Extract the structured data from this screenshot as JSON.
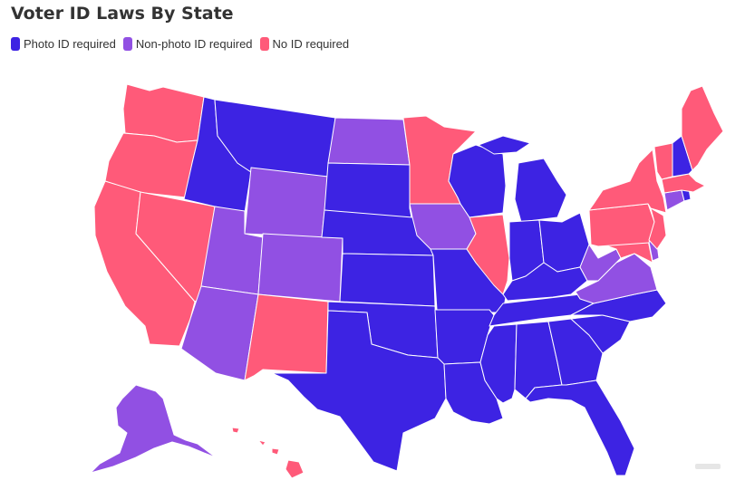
{
  "title": "Voter ID Laws By State",
  "legend": [
    {
      "label": "Photo ID required",
      "color": "#3d23e3"
    },
    {
      "label": "Non-photo ID required",
      "color": "#9150e3"
    },
    {
      "label": "No ID required",
      "color": "#ff5a79"
    }
  ],
  "colors": {
    "photo": "#3d23e3",
    "nonphoto": "#9150e3",
    "none": "#ff5a79"
  },
  "states": [
    {
      "name": "Washington",
      "category": "none"
    },
    {
      "name": "Oregon",
      "category": "none"
    },
    {
      "name": "California",
      "category": "none"
    },
    {
      "name": "Nevada",
      "category": "none"
    },
    {
      "name": "Idaho",
      "category": "photo"
    },
    {
      "name": "Montana",
      "category": "photo"
    },
    {
      "name": "Wyoming",
      "category": "nonphoto"
    },
    {
      "name": "Utah",
      "category": "nonphoto"
    },
    {
      "name": "Arizona",
      "category": "nonphoto"
    },
    {
      "name": "Colorado",
      "category": "nonphoto"
    },
    {
      "name": "New Mexico",
      "category": "none"
    },
    {
      "name": "North Dakota",
      "category": "nonphoto"
    },
    {
      "name": "South Dakota",
      "category": "photo"
    },
    {
      "name": "Nebraska",
      "category": "photo"
    },
    {
      "name": "Kansas",
      "category": "photo"
    },
    {
      "name": "Oklahoma",
      "category": "photo"
    },
    {
      "name": "Texas",
      "category": "photo"
    },
    {
      "name": "Minnesota",
      "category": "none"
    },
    {
      "name": "Iowa",
      "category": "nonphoto"
    },
    {
      "name": "Missouri",
      "category": "photo"
    },
    {
      "name": "Arkansas",
      "category": "photo"
    },
    {
      "name": "Louisiana",
      "category": "photo"
    },
    {
      "name": "Wisconsin",
      "category": "photo"
    },
    {
      "name": "Illinois",
      "category": "none"
    },
    {
      "name": "Michigan",
      "category": "photo"
    },
    {
      "name": "Indiana",
      "category": "photo"
    },
    {
      "name": "Ohio",
      "category": "photo"
    },
    {
      "name": "Kentucky",
      "category": "photo"
    },
    {
      "name": "Tennessee",
      "category": "photo"
    },
    {
      "name": "Mississippi",
      "category": "photo"
    },
    {
      "name": "Alabama",
      "category": "photo"
    },
    {
      "name": "Georgia",
      "category": "photo"
    },
    {
      "name": "Florida",
      "category": "photo"
    },
    {
      "name": "South Carolina",
      "category": "photo"
    },
    {
      "name": "North Carolina",
      "category": "photo"
    },
    {
      "name": "Virginia",
      "category": "nonphoto"
    },
    {
      "name": "West Virginia",
      "category": "nonphoto"
    },
    {
      "name": "Maryland",
      "category": "none"
    },
    {
      "name": "Delaware",
      "category": "nonphoto"
    },
    {
      "name": "Pennsylvania",
      "category": "none"
    },
    {
      "name": "New Jersey",
      "category": "none"
    },
    {
      "name": "New York",
      "category": "none"
    },
    {
      "name": "Connecticut",
      "category": "nonphoto"
    },
    {
      "name": "Rhode Island",
      "category": "photo"
    },
    {
      "name": "Massachusetts",
      "category": "none"
    },
    {
      "name": "Vermont",
      "category": "none"
    },
    {
      "name": "New Hampshire",
      "category": "photo"
    },
    {
      "name": "Maine",
      "category": "none"
    },
    {
      "name": "Alaska",
      "category": "nonphoto"
    },
    {
      "name": "Hawaii",
      "category": "none"
    }
  ]
}
